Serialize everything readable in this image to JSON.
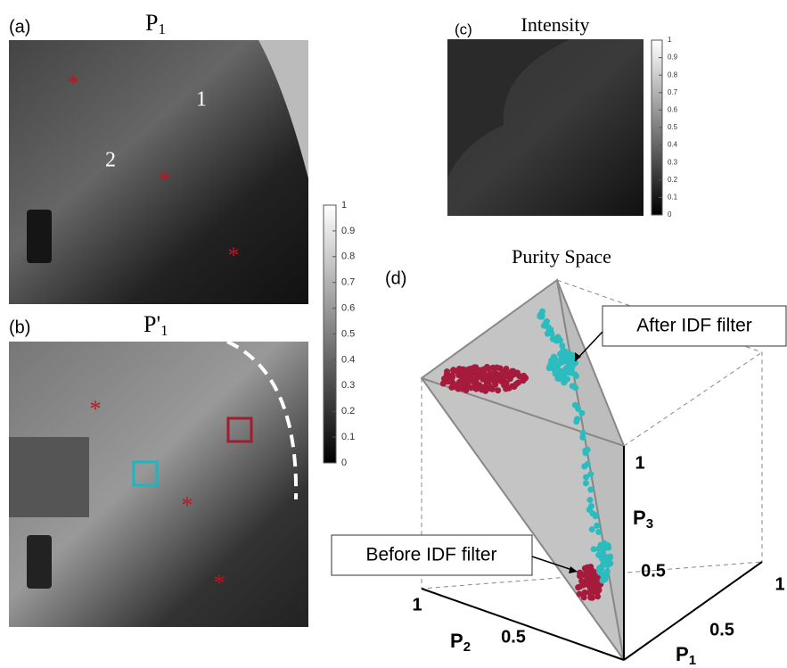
{
  "panels": {
    "a": {
      "label": "(a)",
      "title": {
        "main": "P",
        "sub": "1"
      },
      "annotations": [
        "1",
        "2"
      ]
    },
    "colorbar_ab": {
      "ticks": [
        "0",
        "0.1",
        "0.2",
        "0.3",
        "0.4",
        "0.5",
        "0.6",
        "0.7",
        "0.8",
        "0.9",
        "1"
      ]
    },
    "b": {
      "label": "(b)",
      "title": {
        "main": "P'",
        "sub": "1"
      }
    },
    "c": {
      "label": "(c)",
      "title": "Intensity",
      "colorbar_ticks": [
        "0",
        "0.1",
        "0.2",
        "0.3",
        "0.4",
        "0.5",
        "0.6",
        "0.7",
        "0.8",
        "0.9",
        "1"
      ]
    },
    "d": {
      "label": "(d)",
      "title": "Purity Space",
      "callouts": [
        "After IDF filter",
        "Before IDF filter"
      ],
      "axes": {
        "p3": {
          "main": "P",
          "sub": "3",
          "ticks": [
            "1",
            "0.5"
          ]
        },
        "p1": {
          "main": "P",
          "sub": "1",
          "ticks": [
            "1",
            "0.5"
          ]
        },
        "p2": {
          "main": "P",
          "sub": "2",
          "ticks": [
            "1",
            "0.5"
          ]
        }
      }
    }
  }
}
